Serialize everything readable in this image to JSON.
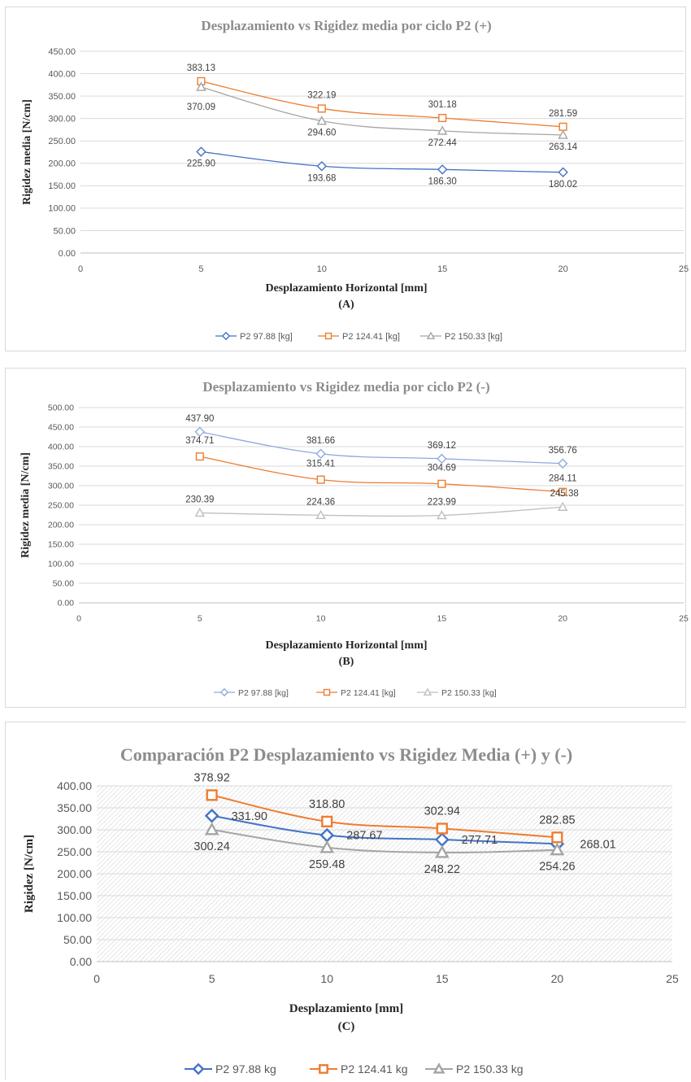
{
  "chart_data": [
    {
      "type": "line",
      "title": "Desplazamiento vs Rigidez media por ciclo P2 (+)",
      "xlabel": "Desplazamiento Horizontal [mm]",
      "sublabel": "(A)",
      "ylabel": "Rigidez media [N/cm]",
      "xlim": [
        0,
        25
      ],
      "ylim": [
        0,
        450
      ],
      "xticks": [
        "0",
        "5",
        "10",
        "15",
        "20",
        "25"
      ],
      "yticks": [
        "0.00",
        "50.00",
        "100.00",
        "150.00",
        "200.00",
        "250.00",
        "300.00",
        "350.00",
        "400.00",
        "450.00"
      ],
      "grid": true,
      "legend_position": "bottom",
      "x": [
        5,
        10,
        15,
        20
      ],
      "series": [
        {
          "name": "P2 97.88 [kg]",
          "marker": "diamond",
          "color": "#4472C4",
          "values": [
            225.9,
            193.68,
            186.3,
            180.02
          ],
          "labels": [
            "225.90",
            "193.68",
            "186.30",
            "180.02"
          ]
        },
        {
          "name": "P2 124.41 [kg]",
          "marker": "square",
          "color": "#ED7D31",
          "values": [
            383.13,
            322.19,
            301.18,
            281.59
          ],
          "labels": [
            "383.13",
            "322.19",
            "301.18",
            "281.59"
          ]
        },
        {
          "name": "P2 150.33 [kg]",
          "marker": "triangle",
          "color": "#A5A5A5",
          "values": [
            370.09,
            294.6,
            272.44,
            263.14
          ],
          "labels": [
            "370.09",
            "294.60",
            "272.44",
            "263.14"
          ]
        }
      ]
    },
    {
      "type": "line",
      "title": "Desplazamiento vs Rigidez media por ciclo P2 (-)",
      "xlabel": "Desplazamiento Horizontal [mm]",
      "sublabel": "(B)",
      "ylabel": "Rigidez media [N/cm]",
      "xlim": [
        0,
        25
      ],
      "ylim": [
        0,
        500
      ],
      "xticks": [
        "0",
        "5",
        "10",
        "15",
        "20",
        "25"
      ],
      "yticks": [
        "0.00",
        "50.00",
        "100.00",
        "150.00",
        "200.00",
        "250.00",
        "300.00",
        "350.00",
        "400.00",
        "450.00",
        "500.00"
      ],
      "grid": true,
      "legend_position": "bottom",
      "x": [
        5,
        10,
        15,
        20
      ],
      "series": [
        {
          "name": "P2 97.88 [kg]",
          "marker": "diamond",
          "color": "#8FAADC",
          "values": [
            437.9,
            381.66,
            369.12,
            356.76
          ],
          "labels": [
            "437.90",
            "381.66",
            "369.12",
            "356.76"
          ]
        },
        {
          "name": "P2 124.41 [kg]",
          "marker": "square",
          "color": "#ED7D31",
          "values": [
            374.71,
            315.41,
            304.69,
            284.11
          ],
          "labels": [
            "374.71",
            "315.41",
            "304.69",
            "284.11"
          ]
        },
        {
          "name": "P2 150.33 [kg]",
          "marker": "triangle",
          "color": "#BFBFBF",
          "values": [
            230.39,
            224.36,
            223.99,
            245.38
          ],
          "labels": [
            "230.39",
            "224.36",
            "223.99",
            "245.38"
          ]
        }
      ]
    },
    {
      "type": "line",
      "title": "Comparación  P2 Desplazamiento vs Rigidez Media (+) y  (-)",
      "xlabel": "Desplazamiento [mm]",
      "sublabel": "(C)",
      "ylabel": "Rigidez [N/cm]",
      "xlim": [
        0,
        25
      ],
      "ylim": [
        0,
        400
      ],
      "xticks": [
        "0",
        "5",
        "10",
        "15",
        "20",
        "25"
      ],
      "yticks": [
        "0.00",
        "50.00",
        "100.00",
        "150.00",
        "200.00",
        "250.00",
        "300.00",
        "350.00",
        "400.00"
      ],
      "grid": true,
      "hatched_background": true,
      "legend_position": "bottom",
      "x": [
        5,
        10,
        15,
        20
      ],
      "series": [
        {
          "name": "P2 97.88 kg",
          "marker": "diamond",
          "color": "#4472C4",
          "values": [
            331.9,
            287.67,
            277.71,
            268.01
          ],
          "labels": [
            "331.90",
            "287.67",
            "277.71",
            "268.01"
          ]
        },
        {
          "name": "P2 124.41 kg",
          "marker": "square",
          "color": "#ED7D31",
          "values": [
            378.92,
            318.8,
            302.94,
            282.85
          ],
          "labels": [
            "378.92",
            "318.80",
            "302.94",
            "282.85"
          ]
        },
        {
          "name": "P2 150.33 kg",
          "marker": "triangle",
          "color": "#A5A5A5",
          "values": [
            300.24,
            259.48,
            248.22,
            254.26
          ],
          "labels": [
            "300.24",
            "259.48",
            "248.22",
            "254.26"
          ]
        }
      ]
    }
  ]
}
